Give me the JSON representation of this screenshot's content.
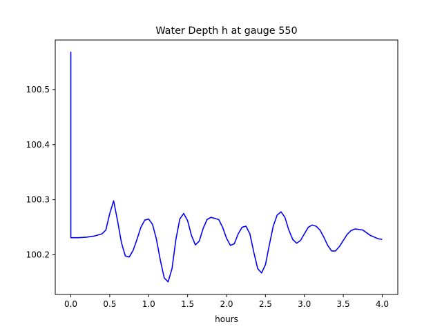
{
  "chart_data": {
    "type": "line",
    "title": "Water Depth h at gauge 550",
    "xlabel": "hours",
    "ylabel": "",
    "xlim": [
      -0.2,
      4.2
    ],
    "ylim": [
      100.128,
      100.59
    ],
    "xticks": [
      0.0,
      0.5,
      1.0,
      1.5,
      2.0,
      2.5,
      3.0,
      3.5,
      4.0
    ],
    "xtick_labels": [
      "0.0",
      "0.5",
      "1.0",
      "1.5",
      "2.0",
      "2.5",
      "3.0",
      "3.5",
      "4.0"
    ],
    "yticks": [
      100.2,
      100.3,
      100.4,
      100.5
    ],
    "ytick_labels": [
      "100.2",
      "100.3",
      "100.4",
      "100.5"
    ],
    "grid": false,
    "series": [
      {
        "color": "#0000ff",
        "x": [
          0.0,
          0.0,
          0.0,
          0.1,
          0.2,
          0.3,
          0.4,
          0.45,
          0.5,
          0.55,
          0.6,
          0.65,
          0.7,
          0.75,
          0.8,
          0.85,
          0.9,
          0.95,
          1.0,
          1.05,
          1.1,
          1.15,
          1.2,
          1.25,
          1.3,
          1.35,
          1.4,
          1.45,
          1.5,
          1.55,
          1.6,
          1.65,
          1.7,
          1.75,
          1.8,
          1.85,
          1.9,
          1.95,
          2.0,
          2.05,
          2.1,
          2.15,
          2.2,
          2.25,
          2.3,
          2.35,
          2.4,
          2.45,
          2.5,
          2.55,
          2.6,
          2.65,
          2.7,
          2.75,
          2.8,
          2.85,
          2.9,
          2.95,
          3.0,
          3.05,
          3.1,
          3.15,
          3.2,
          3.25,
          3.3,
          3.35,
          3.4,
          3.45,
          3.5,
          3.55,
          3.6,
          3.65,
          3.7,
          3.75,
          3.8,
          3.85,
          3.9,
          3.95,
          4.0
        ],
        "y": [
          100.231,
          100.568,
          100.231,
          100.231,
          100.232,
          100.234,
          100.238,
          100.245,
          100.275,
          100.298,
          100.262,
          100.222,
          100.198,
          100.196,
          100.208,
          100.228,
          100.25,
          100.263,
          100.265,
          100.255,
          100.228,
          100.19,
          100.158,
          100.151,
          100.175,
          100.228,
          100.265,
          100.275,
          100.262,
          100.235,
          100.218,
          100.225,
          100.248,
          100.264,
          100.268,
          100.266,
          100.264,
          100.25,
          100.23,
          100.217,
          100.22,
          100.238,
          100.25,
          100.252,
          100.238,
          100.205,
          100.175,
          100.167,
          100.182,
          100.218,
          100.252,
          100.272,
          100.278,
          100.268,
          100.245,
          100.228,
          100.221,
          100.226,
          100.238,
          100.25,
          100.254,
          100.252,
          100.245,
          100.232,
          100.217,
          100.207,
          100.207,
          100.215,
          100.226,
          100.237,
          100.244,
          100.247,
          100.246,
          100.245,
          100.24,
          100.235,
          100.232,
          100.229,
          100.228
        ]
      }
    ]
  }
}
